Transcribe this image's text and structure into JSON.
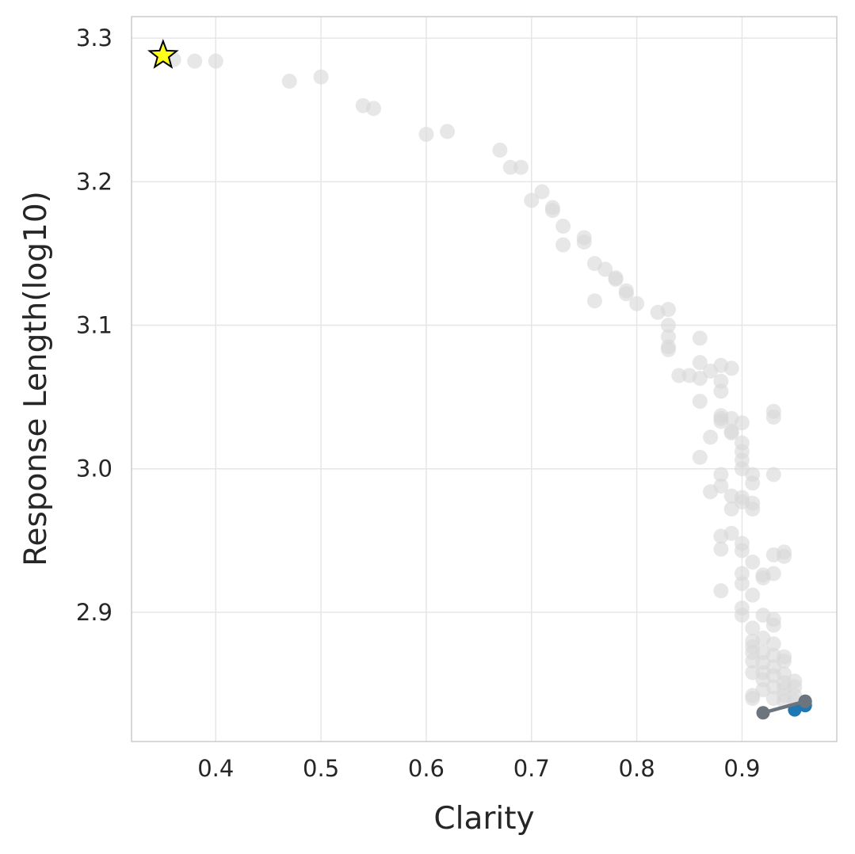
{
  "chart_data": {
    "type": "scatter",
    "xlabel": "Clarity",
    "ylabel": "Response Length(log10)",
    "xlim": [
      0.32,
      0.99
    ],
    "ylim": [
      2.81,
      3.315
    ],
    "xticks": [
      0.4,
      0.5,
      0.6,
      0.7,
      0.8,
      0.9
    ],
    "xtick_labels": [
      "0.4",
      "0.5",
      "0.6",
      "0.7",
      "0.8",
      "0.9"
    ],
    "yticks": [
      2.9,
      3.0,
      3.1,
      3.2,
      3.3
    ],
    "ytick_labels": [
      "2.9",
      "3.0",
      "3.1",
      "3.2",
      "3.3"
    ],
    "grid": true,
    "legend": "none",
    "colors": {
      "background_points": "#d9d9d9",
      "highlight_points": "#1f77b4",
      "path": "#6c757d",
      "star_fill": "#ffff1a",
      "star_edge": "#000000"
    },
    "series": [
      {
        "role": "background",
        "x": [
          0.36,
          0.38,
          0.4,
          0.47,
          0.5,
          0.54,
          0.55,
          0.6,
          0.62,
          0.67,
          0.68,
          0.69,
          0.7,
          0.71,
          0.72,
          0.72,
          0.73,
          0.73,
          0.75,
          0.75,
          0.76,
          0.76,
          0.77,
          0.78,
          0.78,
          0.79,
          0.79,
          0.8,
          0.82,
          0.83,
          0.83,
          0.83,
          0.83,
          0.83,
          0.84,
          0.85,
          0.86,
          0.86,
          0.86,
          0.86,
          0.86,
          0.87,
          0.87,
          0.87,
          0.88,
          0.88,
          0.88,
          0.88,
          0.88,
          0.88,
          0.88,
          0.88,
          0.88,
          0.88,
          0.88,
          0.89,
          0.89,
          0.89,
          0.89,
          0.89,
          0.89,
          0.89,
          0.9,
          0.9,
          0.9,
          0.9,
          0.9,
          0.9,
          0.9,
          0.9,
          0.9,
          0.9,
          0.9,
          0.9,
          0.9,
          0.91,
          0.91,
          0.91,
          0.91,
          0.91,
          0.91,
          0.91,
          0.91,
          0.91,
          0.91,
          0.91,
          0.91,
          0.91,
          0.91,
          0.92,
          0.92,
          0.92,
          0.92,
          0.92,
          0.92,
          0.92,
          0.92,
          0.92,
          0.93,
          0.93,
          0.93,
          0.93,
          0.93,
          0.93,
          0.93,
          0.93,
          0.93,
          0.93,
          0.93,
          0.93,
          0.93,
          0.94,
          0.94,
          0.94,
          0.94,
          0.94,
          0.94,
          0.94,
          0.94,
          0.94,
          0.95,
          0.95,
          0.95,
          0.95,
          0.96
        ],
        "y": [
          3.285,
          3.284,
          3.284,
          3.27,
          3.273,
          3.253,
          3.251,
          3.233,
          3.235,
          3.222,
          3.21,
          3.21,
          3.187,
          3.193,
          3.182,
          3.18,
          3.169,
          3.156,
          3.161,
          3.158,
          3.143,
          3.117,
          3.139,
          3.133,
          3.132,
          3.124,
          3.122,
          3.115,
          3.109,
          3.111,
          3.1,
          3.092,
          3.085,
          3.083,
          3.065,
          3.065,
          3.091,
          3.074,
          3.063,
          3.047,
          3.008,
          3.068,
          3.022,
          2.984,
          3.072,
          3.061,
          3.054,
          3.037,
          3.035,
          3.033,
          2.996,
          2.988,
          2.953,
          2.944,
          2.915,
          3.07,
          3.035,
          3.026,
          2.981,
          2.972,
          2.955,
          3.025,
          3.032,
          3.018,
          3.012,
          3.006,
          3.0,
          2.98,
          2.977,
          2.948,
          2.943,
          2.927,
          2.92,
          2.903,
          2.898,
          2.996,
          2.99,
          2.976,
          2.972,
          2.935,
          2.912,
          2.889,
          2.88,
          2.872,
          2.866,
          2.858,
          2.842,
          2.84,
          2.876,
          2.926,
          2.924,
          2.898,
          2.882,
          2.872,
          2.865,
          2.858,
          2.853,
          2.846,
          3.04,
          3.036,
          2.996,
          2.94,
          2.927,
          2.895,
          2.891,
          2.878,
          2.87,
          2.862,
          2.856,
          2.848,
          2.84,
          2.942,
          2.939,
          2.869,
          2.866,
          2.857,
          2.851,
          2.847,
          2.842,
          2.838,
          2.852,
          2.848,
          2.842,
          2.838,
          2.836
        ]
      },
      {
        "role": "highlight",
        "x": [
          0.95,
          0.96,
          0.96
        ],
        "y": [
          2.832,
          2.835,
          2.838
        ]
      },
      {
        "role": "path",
        "x": [
          0.92,
          0.96
        ],
        "y": [
          2.83,
          2.838
        ]
      },
      {
        "role": "star",
        "x": [
          0.35
        ],
        "y": [
          3.288
        ]
      }
    ]
  }
}
